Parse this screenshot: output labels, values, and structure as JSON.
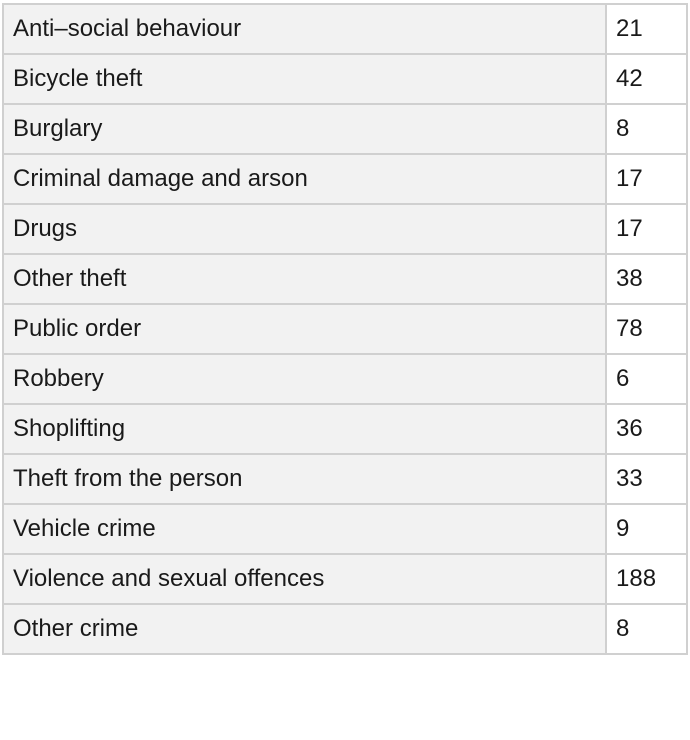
{
  "table": {
    "rows": [
      [
        "Anti–social behaviour",
        21
      ],
      [
        "Bicycle theft",
        42
      ],
      [
        "Burglary",
        8
      ],
      [
        "Criminal damage and arson",
        17
      ],
      [
        "Drugs",
        17
      ],
      [
        "Other theft",
        38
      ],
      [
        "Public order",
        78
      ],
      [
        "Robbery",
        6
      ],
      [
        "Shoplifting",
        36
      ],
      [
        "Theft from the person",
        33
      ],
      [
        "Vehicle crime",
        9
      ],
      [
        "Violence and sexual offences",
        188
      ],
      [
        "Other crime",
        8
      ]
    ]
  }
}
